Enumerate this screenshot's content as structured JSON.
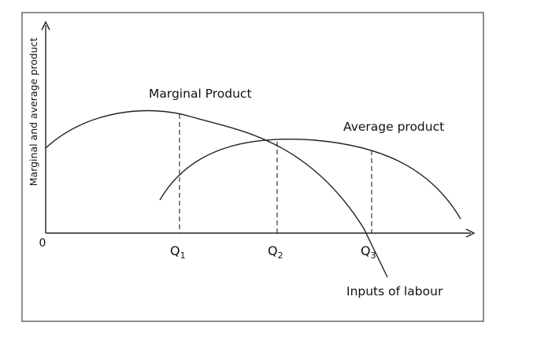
{
  "diagram": {
    "y_axis_label": "Marginal and average product",
    "x_axis_label": "Inputs of labour",
    "origin_label": "0",
    "curves": {
      "marginal_product_label": "Marginal Product",
      "average_product_label": "Average product"
    },
    "ticks": [
      {
        "base": "Q",
        "sub": "1"
      },
      {
        "base": "Q",
        "sub": "2"
      },
      {
        "base": "Q",
        "sub": "3"
      }
    ],
    "colors": {
      "ink": "#222222",
      "frame": "#444444",
      "background": "#ffffff"
    }
  }
}
